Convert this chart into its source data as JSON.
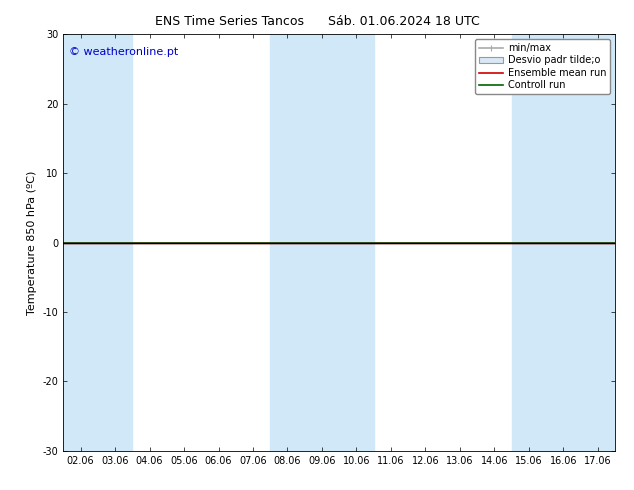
{
  "title_left": "ENS Time Series Tancos",
  "title_right": "Sáb. 01.06.2024 18 UTC",
  "ylabel": "Temperature 850 hPa (ºC)",
  "xlim_dates": [
    "02.06",
    "03.06",
    "04.06",
    "05.06",
    "06.06",
    "07.06",
    "08.06",
    "09.06",
    "10.06",
    "11.06",
    "12.06",
    "13.06",
    "14.06",
    "15.06",
    "16.06",
    "17.06"
  ],
  "ylim": [
    -30,
    30
  ],
  "yticks": [
    -30,
    -20,
    -10,
    0,
    10,
    20,
    30
  ],
  "bg_color": "#ffffff",
  "plot_bg_color": "#ffffff",
  "band_color": "#d0e8f8",
  "zero_line_color": "#000000",
  "green_line_color": "#006400",
  "red_line_color": "#cc0000",
  "watermark": "© weatheronline.pt",
  "watermark_color": "#0000cc",
  "legend_items": [
    {
      "label": "min/max",
      "color": "#aaaaaa",
      "lw": 1.2,
      "style": "hline_ticks"
    },
    {
      "label": "Desvio padr tilde;o",
      "color": "#bbbbbb",
      "lw": 1.2,
      "style": "box"
    },
    {
      "label": "Ensemble mean run",
      "color": "#cc0000",
      "lw": 1.2,
      "style": "line"
    },
    {
      "label": "Controll run",
      "color": "#006400",
      "lw": 1.2,
      "style": "line"
    }
  ],
  "shaded_cols": [
    0,
    1,
    6,
    7,
    8,
    13,
    14,
    15
  ],
  "title_fontsize": 9,
  "tick_fontsize": 7,
  "ylabel_fontsize": 8,
  "watermark_fontsize": 8,
  "legend_fontsize": 7
}
